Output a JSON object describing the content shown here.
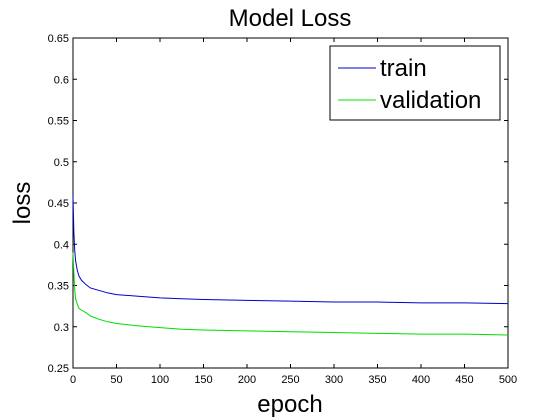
{
  "chart_data": {
    "type": "line",
    "title": "Model Loss",
    "xlabel": "epoch",
    "ylabel": "loss",
    "xlim": [
      0,
      500
    ],
    "ylim": [
      0.25,
      0.65
    ],
    "xticks": [
      0,
      50,
      100,
      150,
      200,
      250,
      300,
      350,
      400,
      450,
      500
    ],
    "xtick_labels": [
      "0",
      "50",
      "100",
      "150",
      "200",
      "250",
      "300",
      "350",
      "400",
      "450",
      "500"
    ],
    "yticks": [
      0.25,
      0.3,
      0.35,
      0.4,
      0.45,
      0.5,
      0.55,
      0.6,
      0.65
    ],
    "ytick_labels": [
      "0.25",
      "0.3",
      "0.35",
      "0.4",
      "0.45",
      "0.5",
      "0.55",
      "0.6",
      "0.65"
    ],
    "grid": false,
    "legend_position": "top-right",
    "series": [
      {
        "name": "train",
        "color": "#0000cc",
        "x": [
          0,
          1,
          2,
          3,
          5,
          7,
          10,
          15,
          20,
          30,
          40,
          50,
          75,
          100,
          125,
          150,
          200,
          250,
          300,
          350,
          400,
          450,
          500
        ],
        "y": [
          0.458,
          0.415,
          0.392,
          0.38,
          0.368,
          0.361,
          0.356,
          0.351,
          0.347,
          0.344,
          0.341,
          0.339,
          0.337,
          0.335,
          0.334,
          0.333,
          0.332,
          0.331,
          0.33,
          0.33,
          0.329,
          0.329,
          0.328
        ]
      },
      {
        "name": "validation",
        "color": "#00dd00",
        "x": [
          0,
          1,
          2,
          3,
          5,
          7,
          10,
          15,
          20,
          30,
          40,
          50,
          75,
          100,
          125,
          150,
          200,
          250,
          300,
          350,
          400,
          450,
          500
        ],
        "y": [
          0.39,
          0.365,
          0.345,
          0.334,
          0.327,
          0.322,
          0.32,
          0.317,
          0.313,
          0.309,
          0.306,
          0.304,
          0.301,
          0.299,
          0.297,
          0.296,
          0.295,
          0.294,
          0.293,
          0.292,
          0.291,
          0.291,
          0.29
        ]
      }
    ]
  }
}
